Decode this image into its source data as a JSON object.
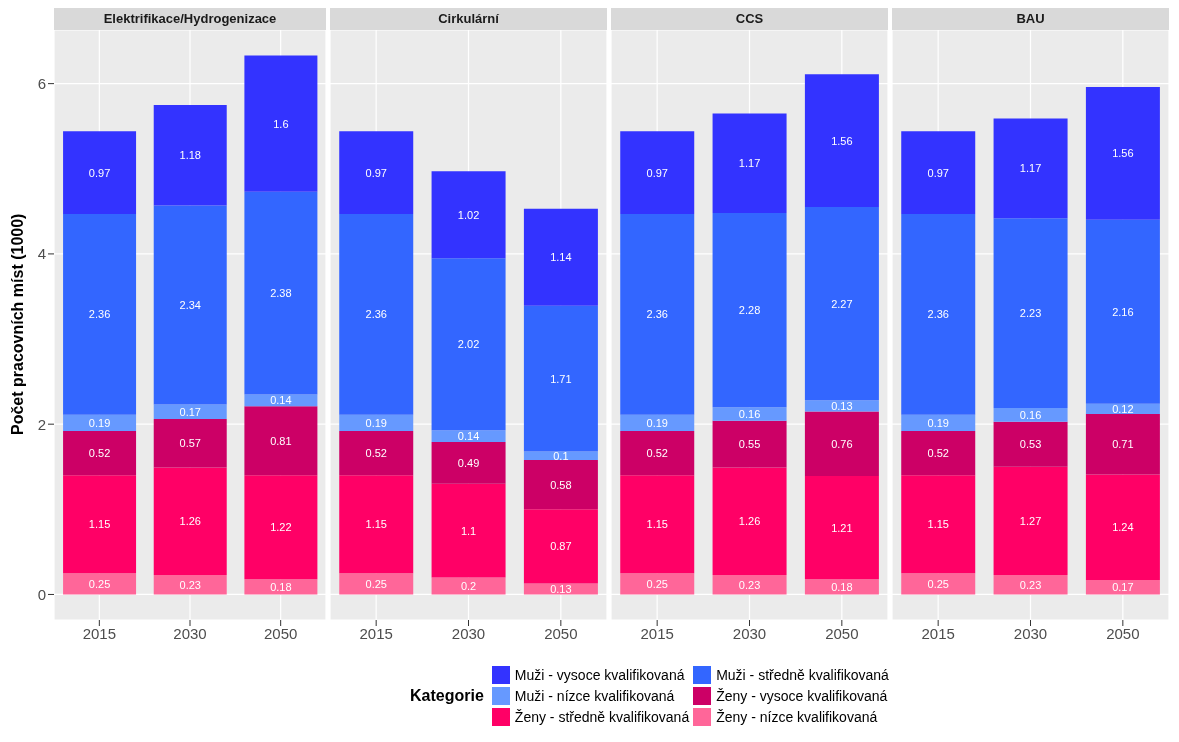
{
  "chart_data": [
    {
      "type": "bar",
      "title": "Elektrifikace/Hydrogenizace",
      "ylabel": "Počet pracovních míst (1000)",
      "legend_title": "Kategorie",
      "legend": "bottom",
      "stacked": true,
      "data_labels": true,
      "grid": true,
      "categories": [
        "2015",
        "2030",
        "2050"
      ],
      "ylim": [
        -0.3,
        6.63
      ],
      "yticks": [
        0,
        2,
        4,
        6
      ],
      "series": [
        {
          "name": "Ženy - nízce kvalifikovaná",
          "color": "#ff6699",
          "values": [
            0.25,
            0.23,
            0.18
          ]
        },
        {
          "name": "Ženy - středně kvalifikovaná",
          "color": "#ff0066",
          "values": [
            1.15,
            1.26,
            1.22
          ]
        },
        {
          "name": "Ženy - vysoce kvalifikovaná",
          "color": "#cc0066",
          "values": [
            0.52,
            0.57,
            0.81
          ]
        },
        {
          "name": "Muži - nízce kvalifikovaná",
          "color": "#6699ff",
          "values": [
            0.19,
            0.17,
            0.14
          ]
        },
        {
          "name": "Muži - středně kvalifikovaná",
          "color": "#3366ff",
          "values": [
            2.36,
            2.34,
            2.38
          ]
        },
        {
          "name": "Muži - vysoce kvalifikovaná",
          "color": "#3333ff",
          "values": [
            0.97,
            1.18,
            1.6
          ]
        }
      ]
    },
    {
      "type": "bar",
      "title": "Cirkulární",
      "stacked": true,
      "data_labels": true,
      "grid": true,
      "tick_labels": "x",
      "categories": [
        "2015",
        "2030",
        "2050"
      ],
      "ylim": [
        -0.3,
        6.63
      ],
      "yticks": [
        0,
        2,
        4,
        6
      ],
      "series": [
        {
          "color": "#ff6699",
          "values": [
            0.25,
            0.2,
            0.13
          ]
        },
        {
          "color": "#ff0066",
          "values": [
            1.15,
            1.1,
            0.87
          ]
        },
        {
          "color": "#cc0066",
          "values": [
            0.52,
            0.49,
            0.58
          ]
        },
        {
          "color": "#6699ff",
          "values": [
            0.19,
            0.14,
            0.1
          ]
        },
        {
          "color": "#3366ff",
          "values": [
            2.36,
            2.02,
            1.71
          ]
        },
        {
          "color": "#3333ff",
          "values": [
            0.97,
            1.02,
            1.14
          ]
        }
      ]
    },
    {
      "type": "bar",
      "title": "CCS",
      "stacked": true,
      "data_labels": true,
      "grid": true,
      "tick_labels": "x",
      "categories": [
        "2015",
        "2030",
        "2050"
      ],
      "ylim": [
        -0.3,
        6.63
      ],
      "yticks": [
        0,
        2,
        4,
        6
      ],
      "series": [
        {
          "color": "#ff6699",
          "values": [
            0.25,
            0.23,
            0.18
          ]
        },
        {
          "color": "#ff0066",
          "values": [
            1.15,
            1.26,
            1.21
          ]
        },
        {
          "color": "#cc0066",
          "values": [
            0.52,
            0.55,
            0.76
          ]
        },
        {
          "color": "#6699ff",
          "values": [
            0.19,
            0.16,
            0.13
          ]
        },
        {
          "color": "#3366ff",
          "values": [
            2.36,
            2.28,
            2.27
          ]
        },
        {
          "color": "#3333ff",
          "values": [
            0.97,
            1.17,
            1.56
          ]
        }
      ]
    },
    {
      "type": "bar",
      "title": "BAU",
      "stacked": true,
      "data_labels": true,
      "grid": true,
      "tick_labels": "x",
      "categories": [
        "2015",
        "2030",
        "2050"
      ],
      "ylim": [
        -0.3,
        6.63
      ],
      "yticks": [
        0,
        2,
        4,
        6
      ],
      "series": [
        {
          "color": "#ff6699",
          "values": [
            0.25,
            0.23,
            0.17
          ]
        },
        {
          "color": "#ff0066",
          "values": [
            1.15,
            1.27,
            1.24
          ]
        },
        {
          "color": "#cc0066",
          "values": [
            0.52,
            0.53,
            0.71
          ]
        },
        {
          "color": "#6699ff",
          "values": [
            0.19,
            0.16,
            0.12
          ]
        },
        {
          "color": "#3366ff",
          "values": [
            2.36,
            2.23,
            2.16
          ]
        },
        {
          "color": "#3333ff",
          "values": [
            0.97,
            1.17,
            1.56
          ]
        }
      ]
    }
  ]
}
